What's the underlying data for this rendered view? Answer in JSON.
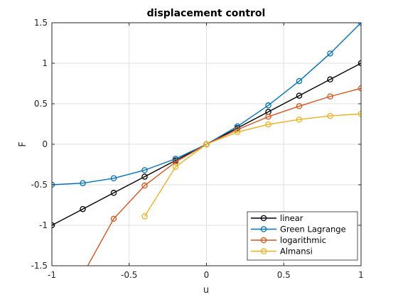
{
  "chart_data": {
    "type": "line",
    "title": "displacement control",
    "xlabel": "u",
    "ylabel": "F",
    "xlim": [
      -1,
      1
    ],
    "ylim": [
      -1.5,
      1.5
    ],
    "grid": true,
    "legend_position": "bottom-right",
    "x_ticks": [
      -1,
      -0.5,
      0,
      0.5,
      1
    ],
    "x_tick_labels": [
      "-1",
      "-0.5",
      "0",
      "0.5",
      "1"
    ],
    "y_ticks": [
      -1.5,
      -1,
      -0.5,
      0,
      0.5,
      1,
      1.5
    ],
    "y_tick_labels": [
      "-1.5",
      "-1",
      "-0.5",
      "0",
      "0.5",
      "1",
      "1.5"
    ],
    "series": [
      {
        "name": "linear",
        "color": "#000000",
        "x": [
          -1,
          -0.8,
          -0.6,
          -0.4,
          -0.2,
          0,
          0.2,
          0.4,
          0.6,
          0.8,
          1
        ],
        "y": [
          -1,
          -0.8,
          -0.6,
          -0.4,
          -0.2,
          0,
          0.2,
          0.4,
          0.6,
          0.8,
          1
        ]
      },
      {
        "name": "Green Lagrange",
        "color": "#0072BD",
        "x": [
          -1,
          -0.8,
          -0.6,
          -0.4,
          -0.2,
          0,
          0.2,
          0.4,
          0.6,
          0.8,
          1
        ],
        "y": [
          -0.5,
          -0.48,
          -0.42,
          -0.32,
          -0.18,
          0,
          0.22,
          0.48,
          0.78,
          1.12,
          1.5
        ]
      },
      {
        "name": "logarithmic",
        "color": "#D95319",
        "x": [
          -1,
          -0.8,
          -0.6,
          -0.4,
          -0.2,
          0,
          0.2,
          0.4,
          0.6,
          0.8,
          1
        ],
        "y": [
          null,
          -1.61,
          -0.92,
          -0.51,
          -0.22,
          0,
          0.18,
          0.34,
          0.47,
          0.59,
          0.69
        ]
      },
      {
        "name": "Almansi",
        "color": "#EDB120",
        "x": [
          -1,
          -0.8,
          -0.6,
          -0.4,
          -0.2,
          0,
          0.2,
          0.4,
          0.6,
          0.8,
          1
        ],
        "y": [
          null,
          null,
          null,
          -0.89,
          -0.28,
          0,
          0.15,
          0.245,
          0.305,
          0.35,
          0.375
        ]
      }
    ]
  }
}
